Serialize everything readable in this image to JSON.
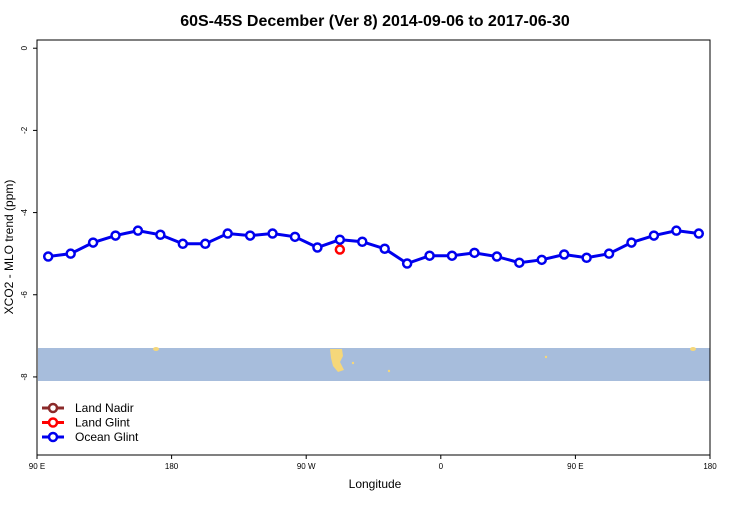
{
  "chart_data": {
    "type": "line",
    "title": "60S-45S December (Ver 8)   2014-09-06 to 2017-06-30",
    "x_label": "Longitude",
    "y_label": "XCO2 - MLO trend (ppm)",
    "xlim": [
      90,
      540
    ],
    "xticks": [
      {
        "value": 90,
        "label": "90 E"
      },
      {
        "value": 180,
        "label": "180"
      },
      {
        "value": 270,
        "label": "90 W"
      },
      {
        "value": 360,
        "label": "0"
      },
      {
        "value": 450,
        "label": "90 E"
      },
      {
        "value": 540,
        "label": "180"
      }
    ],
    "ylim": [
      -9.9,
      0.2
    ],
    "yticks": [
      0,
      -2,
      -4,
      -6,
      -8
    ],
    "legend": "bottom-left",
    "series": [
      {
        "name": "Land Nadir",
        "color": "#8b2a2a",
        "x": [],
        "values": []
      },
      {
        "name": "Land Glint",
        "color": "#ff0000",
        "x": [
          292.5
        ],
        "values": [
          -4.9
        ]
      },
      {
        "name": "Ocean Glint",
        "color": "#0000ee",
        "x": [
          97.5,
          112.5,
          127.5,
          142.5,
          157.5,
          172.5,
          187.5,
          202.5,
          217.5,
          232.5,
          247.5,
          262.5,
          277.5,
          292.5,
          307.5,
          322.5,
          337.5,
          352.5,
          367.5,
          382.5,
          397.5,
          412.5,
          427.5,
          442.5,
          457.5,
          472.5,
          487.5,
          502.5,
          517.5,
          532.5
        ],
        "values": [
          -5.07,
          -5.0,
          -4.73,
          -4.56,
          -4.44,
          -4.54,
          -4.76,
          -4.76,
          -4.51,
          -4.56,
          -4.51,
          -4.59,
          -4.85,
          -4.66,
          -4.71,
          -4.88,
          -5.24,
          -5.05,
          -5.05,
          -4.98,
          -5.07,
          -5.22,
          -5.15,
          -5.02,
          -5.1,
          -5.0,
          -4.73,
          -4.56,
          -4.44,
          -4.51
        ]
      }
    ]
  }
}
